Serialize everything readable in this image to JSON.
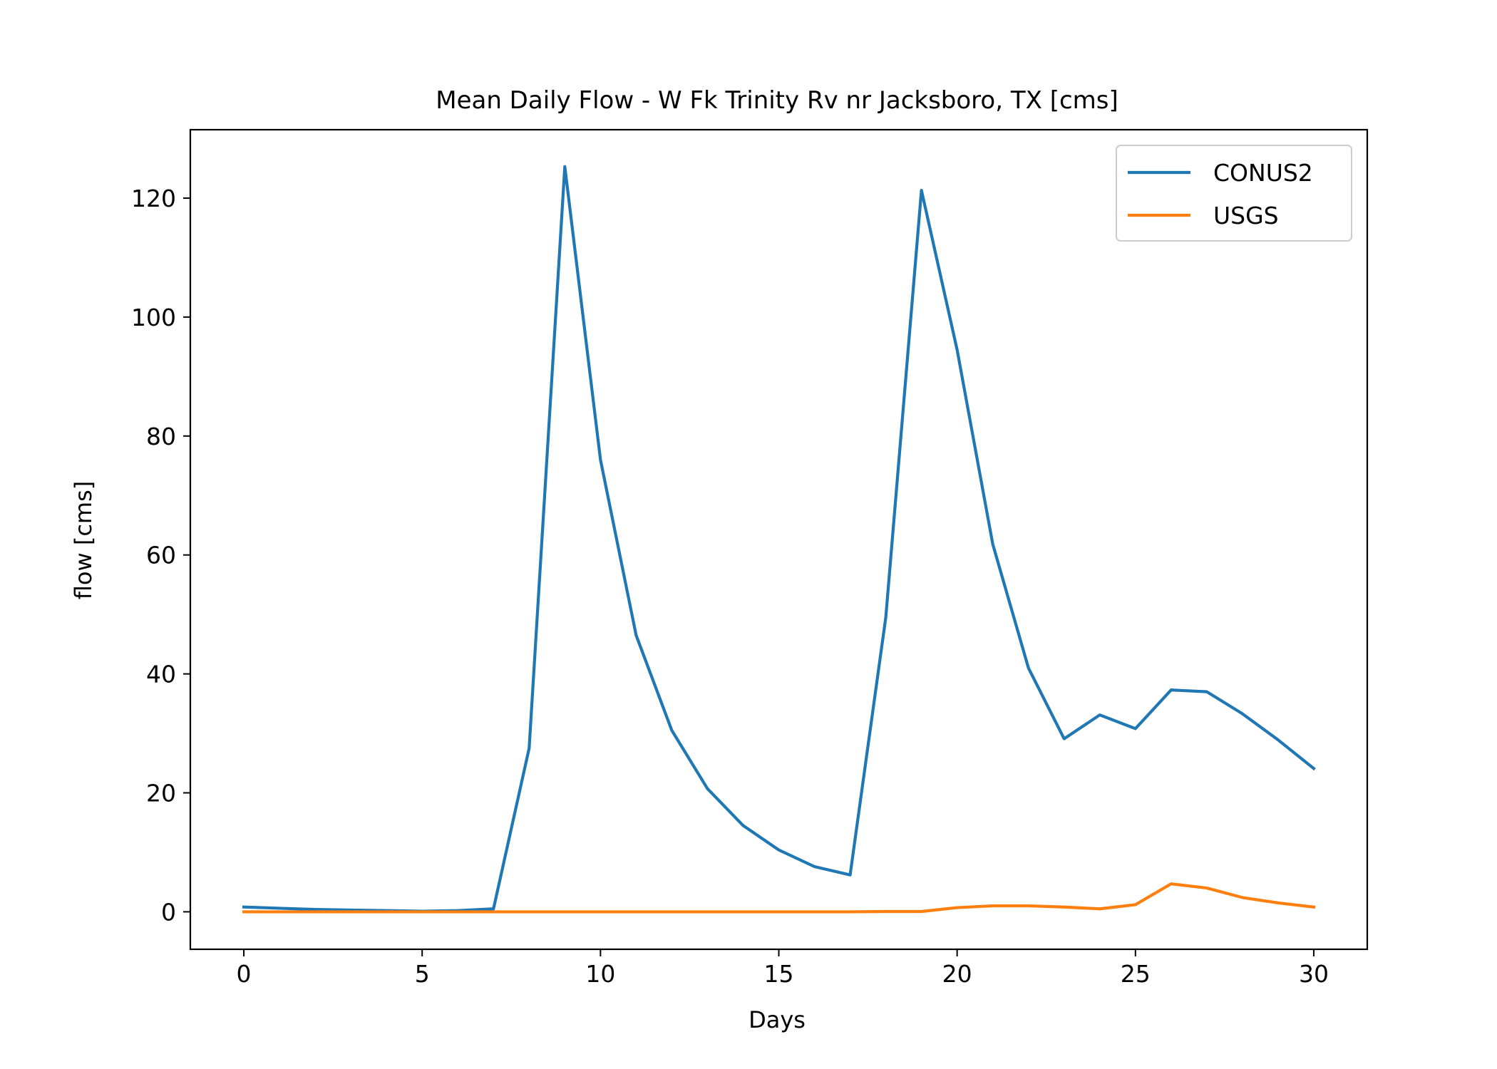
{
  "chart_data": {
    "type": "line",
    "title": "Mean Daily Flow - W Fk Trinity Rv nr Jacksboro, TX [cms]",
    "xlabel": "Days",
    "ylabel": "flow [cms]",
    "xlim": [
      -1.5,
      31.5
    ],
    "ylim": [
      -6.3,
      131.5
    ],
    "xticks": [
      0,
      5,
      10,
      15,
      20,
      25,
      30
    ],
    "yticks": [
      0,
      20,
      40,
      60,
      80,
      100,
      120
    ],
    "grid": false,
    "legend_position": "top-right",
    "x": [
      0,
      1,
      2,
      3,
      4,
      5,
      6,
      7,
      8,
      9,
      10,
      11,
      12,
      13,
      14,
      15,
      16,
      17,
      18,
      19,
      20,
      21,
      22,
      23,
      24,
      25,
      26,
      27,
      28,
      29,
      30
    ],
    "series": [
      {
        "name": "CONUS2",
        "color": "#1f77b4",
        "values": [
          0.8,
          0.6,
          0.4,
          0.3,
          0.2,
          0.1,
          0.2,
          0.5,
          27.5,
          125.3,
          76.0,
          46.5,
          30.5,
          20.7,
          14.5,
          10.4,
          7.6,
          6.2,
          49.5,
          121.3,
          94.5,
          61.8,
          41.0,
          29.1,
          33.1,
          30.8,
          37.3,
          37.0,
          33.3,
          28.9,
          24.1
        ]
      },
      {
        "name": "USGS",
        "color": "#ff7f0e",
        "values": [
          0.0,
          0.0,
          0.0,
          0.0,
          0.0,
          0.0,
          0.0,
          0.0,
          0.0,
          0.0,
          0.0,
          0.0,
          0.0,
          0.0,
          0.0,
          0.0,
          0.0,
          0.0,
          0.05,
          0.05,
          0.7,
          1.0,
          1.0,
          0.8,
          0.5,
          1.2,
          4.7,
          4.0,
          2.4,
          1.5,
          0.8
        ]
      }
    ]
  }
}
